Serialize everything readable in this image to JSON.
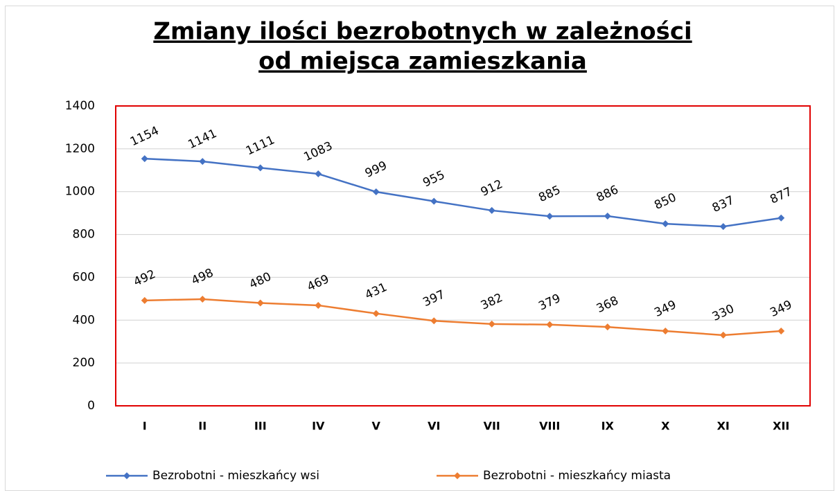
{
  "chart_data": {
    "type": "line",
    "title": [
      "Zmiany ilości bezrobotnych w zależności",
      "od miejsca zamieszkania"
    ],
    "categories": [
      "I",
      "II",
      "III",
      "IV",
      "V",
      "VI",
      "VII",
      "VIII",
      "IX",
      "X",
      "XI",
      "XII"
    ],
    "series": [
      {
        "name": "Bezrobotni - mieszkańcy wsi",
        "color": "#4472c4",
        "values": [
          1154,
          1141,
          1111,
          1083,
          999,
          955,
          912,
          885,
          886,
          850,
          837,
          877
        ]
      },
      {
        "name": "Bezrobotni - mieszkańcy miasta",
        "color": "#ed7d31",
        "values": [
          492,
          498,
          480,
          469,
          431,
          397,
          382,
          379,
          368,
          349,
          330,
          349
        ]
      }
    ],
    "ylim": [
      0,
      1400
    ],
    "yticks": [
      0,
      200,
      400,
      600,
      800,
      1000,
      1200,
      1400
    ],
    "grid": true,
    "legend": "bottom",
    "data_labels": true,
    "plot_border_color": "#e00000"
  }
}
